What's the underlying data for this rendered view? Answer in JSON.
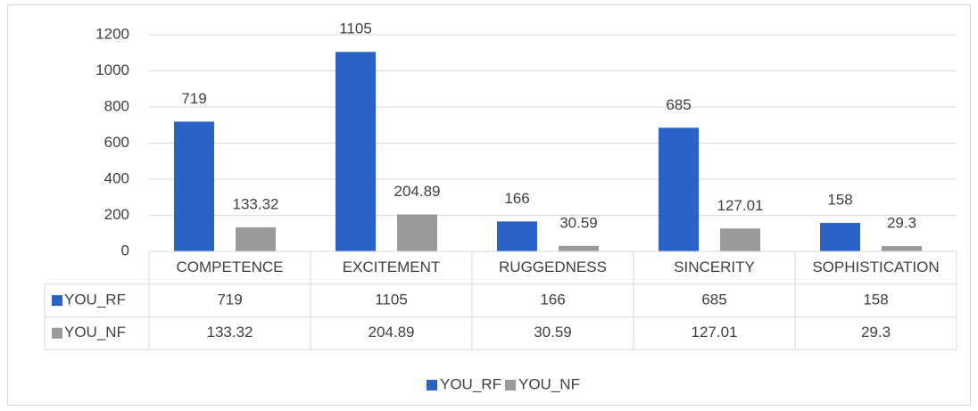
{
  "chart_data": {
    "type": "bar",
    "categories": [
      "COMPETENCE",
      "EXCITEMENT",
      "RUGGEDNESS",
      "SINCERITY",
      "SOPHISTICATION"
    ],
    "series": [
      {
        "name": "YOU_RF",
        "color": "#2b62c8",
        "values": [
          719,
          1105,
          166,
          685,
          158
        ]
      },
      {
        "name": "YOU_NF",
        "color": "#9a9a9a",
        "values": [
          133.32,
          204.89,
          30.59,
          127.01,
          29.3
        ]
      }
    ],
    "ylim": [
      0,
      1200
    ],
    "yticks": [
      0,
      200,
      400,
      600,
      800,
      1000,
      1200
    ],
    "grid": true
  }
}
